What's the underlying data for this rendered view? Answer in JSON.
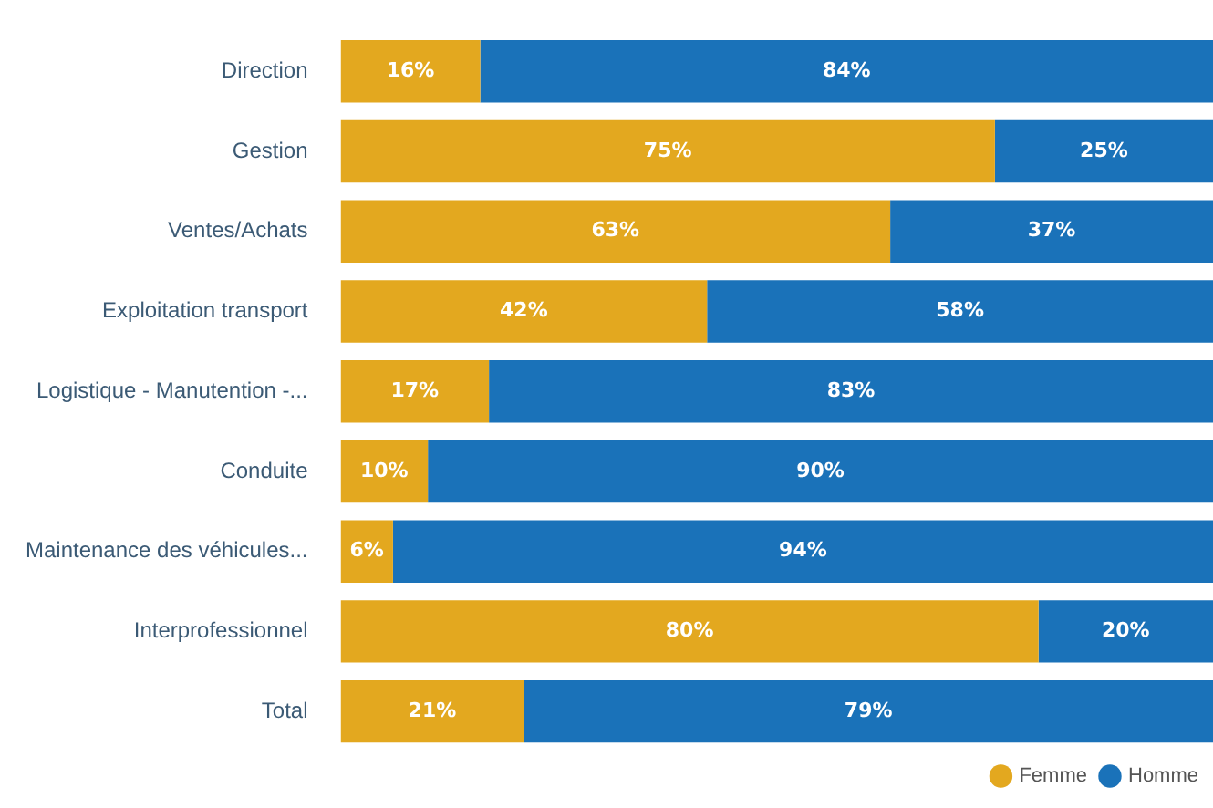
{
  "chart_data": {
    "type": "bar",
    "orientation": "horizontal",
    "stacked": true,
    "categories": [
      "Direction",
      "Gestion",
      "Ventes/Achats",
      "Exploitation transport",
      "Logistique - Manutention -...",
      "Conduite",
      "Maintenance des véhicules...",
      "Interprofessionnel",
      "Total"
    ],
    "series": [
      {
        "name": "Femme",
        "color": "#e3a81f",
        "values": [
          16,
          75,
          63,
          42,
          17,
          10,
          6,
          80,
          21
        ],
        "value_labels": [
          "16%",
          "75%",
          "63%",
          "42%",
          "17%",
          "10%",
          "6%",
          "80%",
          "21%"
        ]
      },
      {
        "name": "Homme",
        "color": "#1a72b9",
        "values": [
          84,
          25,
          37,
          58,
          83,
          90,
          94,
          20,
          79
        ],
        "value_labels": [
          "84%",
          "25%",
          "37%",
          "58%",
          "83%",
          "90%",
          "94%",
          "20%",
          "79%"
        ]
      }
    ],
    "tick_labels": "y",
    "legend": "bottom right"
  }
}
